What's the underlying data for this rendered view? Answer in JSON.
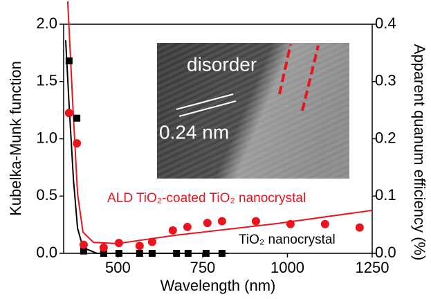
{
  "chart_data": {
    "type": "scatter",
    "xlabel": "Wavelength (nm)",
    "ylabel": "Kubelka-Munk function",
    "y2label": "Apparent quanum efficiency (%)",
    "xlim": [
      340,
      1250
    ],
    "xticks": [
      500,
      750,
      1000,
      1250
    ],
    "ylim": [
      0,
      2
    ],
    "yticks": [
      {
        "value": 0,
        "label": "0.0"
      },
      {
        "value": 0.5,
        "label": "0.5"
      },
      {
        "value": 1,
        "label": "1.0"
      },
      {
        "value": 1.5,
        "label": "1.5"
      },
      {
        "value": 2,
        "label": "2.0"
      }
    ],
    "y2lim": [
      0,
      0.4
    ],
    "y2ticks": [
      {
        "value": 0,
        "label": "0.0"
      },
      {
        "value": 0.1,
        "label": "0.1"
      },
      {
        "value": 0.2,
        "label": "0.2"
      },
      {
        "value": 0.3,
        "label": "0.3"
      },
      {
        "value": 0.4,
        "label": "0.4"
      }
    ],
    "series": [
      {
        "kind": "line",
        "color": "#000000",
        "x": [
          346,
          356,
          369,
          381,
          397,
          438,
          826
        ],
        "values": [
          1.86,
          1.3,
          0.64,
          0.22,
          0.05,
          0,
          0
        ]
      },
      {
        "kind": "line",
        "color": "#e8141e",
        "axis": "y2",
        "x": [
          352,
          367,
          381,
          397,
          428,
          499,
          662,
          969,
          1250
        ],
        "values": [
          0.44,
          0.26,
          0.104,
          0.037,
          0.019,
          0.017,
          0.031,
          0.052,
          0.075
        ]
      },
      {
        "kind": "scatter",
        "marker": "square",
        "color": "#000000",
        "x": [
          356,
          379,
          399,
          458,
          503,
          564,
          601,
          673,
          707,
          760,
          807
        ],
        "values": [
          1.68,
          1.18,
          0.02,
          0,
          0,
          0,
          0,
          0,
          0,
          0,
          0
        ]
      },
      {
        "kind": "scatter",
        "marker": "circle",
        "color": "#e8141e",
        "axis": "y2",
        "x": [
          356,
          379,
          399,
          458,
          503,
          564,
          601,
          662,
          705,
          764,
          807,
          907,
          1009,
          1111,
          1213
        ],
        "values": [
          0.245,
          0.192,
          0.015,
          0.01,
          0.018,
          0.013,
          0.02,
          0.04,
          0.046,
          0.053,
          0.056,
          0.056,
          0.051,
          0.051,
          0.045
        ]
      }
    ],
    "annotations": [
      "ALD TiO₂-coated TiO₂ nanocrystal",
      "TiO₂ nanocrystal"
    ],
    "inset": {
      "label": "disorder",
      "spacing": "0.24 nm"
    }
  }
}
